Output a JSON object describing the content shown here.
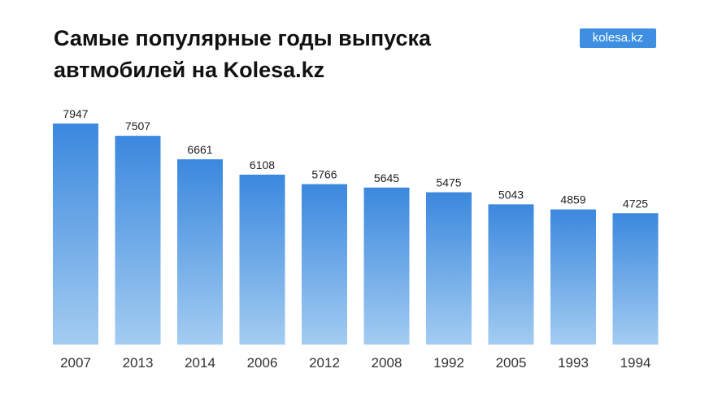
{
  "header": {
    "title": "Самые популярные годы выпуска автмобилей на Kolesa.kz",
    "badge": "kolesa.kz"
  },
  "colors": {
    "bar_top": "#3b88de",
    "bar_bottom": "#a3ccf1",
    "badge_bg": "#3e8fe2"
  },
  "chart_data": {
    "type": "bar",
    "title": "Самые популярные годы выпуска автмобилей на Kolesa.kz",
    "xlabel": "",
    "ylabel": "",
    "categories": [
      "2007",
      "2013",
      "2014",
      "2006",
      "2012",
      "2008",
      "1992",
      "2005",
      "1993",
      "1994"
    ],
    "values": [
      7947,
      7507,
      6661,
      6108,
      5766,
      5645,
      5475,
      5043,
      4859,
      4725
    ],
    "ylim": [
      0,
      7947
    ],
    "grid": false,
    "legend": "none",
    "data_labels": true
  }
}
